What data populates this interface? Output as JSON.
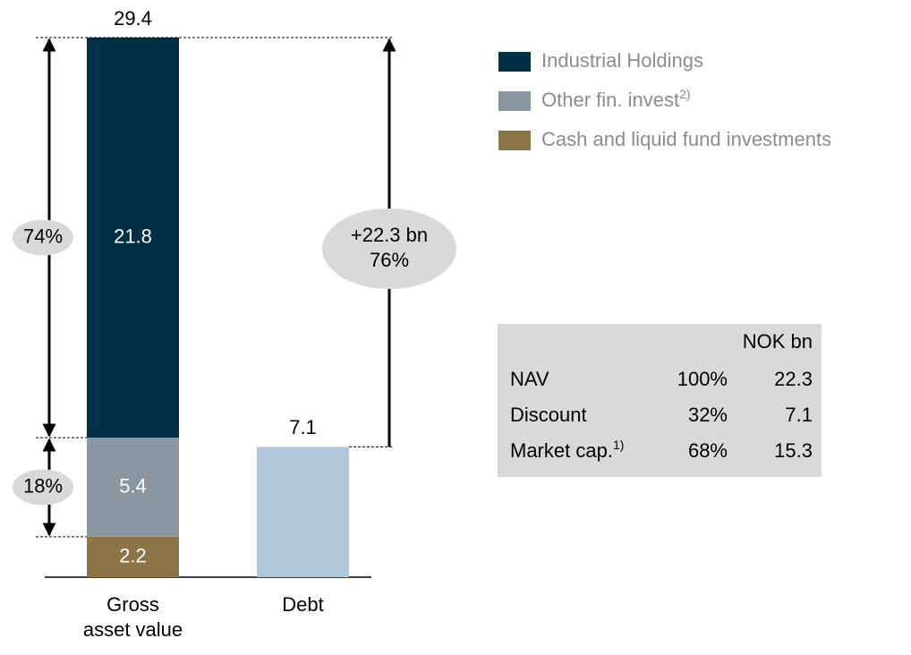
{
  "chart_data": {
    "type": "bar",
    "stacked": true,
    "categories": [
      "Gross asset value",
      "Debt"
    ],
    "series": [
      {
        "name": "Cash and liquid fund investments",
        "color": "#8c7648",
        "values": [
          2.2,
          null
        ]
      },
      {
        "name": "Other fin. invest",
        "note": "2)",
        "color": "#8a97a0",
        "values": [
          5.4,
          null
        ]
      },
      {
        "name": "Industrial Holdings",
        "color": "#003045",
        "values": [
          21.8,
          null
        ]
      },
      {
        "color": "#b0c7da",
        "values": [
          null,
          7.1
        ]
      }
    ],
    "totals": [
      29.4,
      7.1
    ],
    "ylim": [
      0,
      29.4
    ],
    "annotations": [
      {
        "lines": [
          "74%"
        ]
      },
      {
        "lines": [
          "18%"
        ]
      },
      {
        "lines": [
          "+22.3 bn",
          "76%"
        ]
      }
    ],
    "table": {
      "header": "NOK bn",
      "rows": [
        {
          "label": "NAV",
          "share": "100%",
          "value": "22.3"
        },
        {
          "label": "Discount",
          "share": "32%",
          "value": "7.1"
        },
        {
          "label": "Market cap.",
          "note": "1)",
          "share": "68%",
          "value": "15.3"
        }
      ]
    }
  }
}
